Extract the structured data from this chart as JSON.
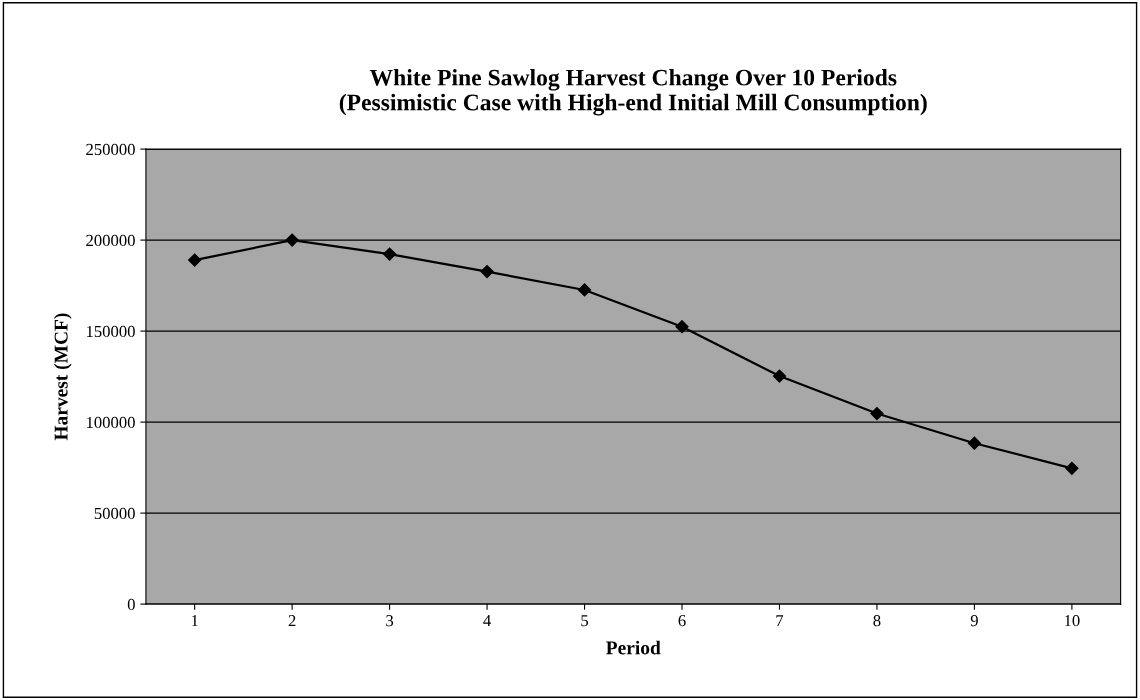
{
  "chart_data": {
    "type": "line",
    "title": "White Pine Sawlog Harvest Change Over 10 Periods\n(Pessimistic Case with High-end Initial Mill Consumption)",
    "xlabel": "Period",
    "ylabel": "Harvest (MCF)",
    "categories": [
      "1",
      "2",
      "3",
      "4",
      "5",
      "6",
      "7",
      "8",
      "9",
      "10"
    ],
    "series": [
      {
        "color": "#000000",
        "values": [
          189000,
          200000,
          192300,
          182700,
          172600,
          152400,
          125300,
          104700,
          88400,
          74600
        ]
      }
    ],
    "ylim": [
      0,
      250000
    ],
    "yticks": [
      0,
      50000,
      100000,
      150000,
      200000,
      250000
    ],
    "grid": "y",
    "marker": "diamond",
    "line_style": "solid"
  }
}
